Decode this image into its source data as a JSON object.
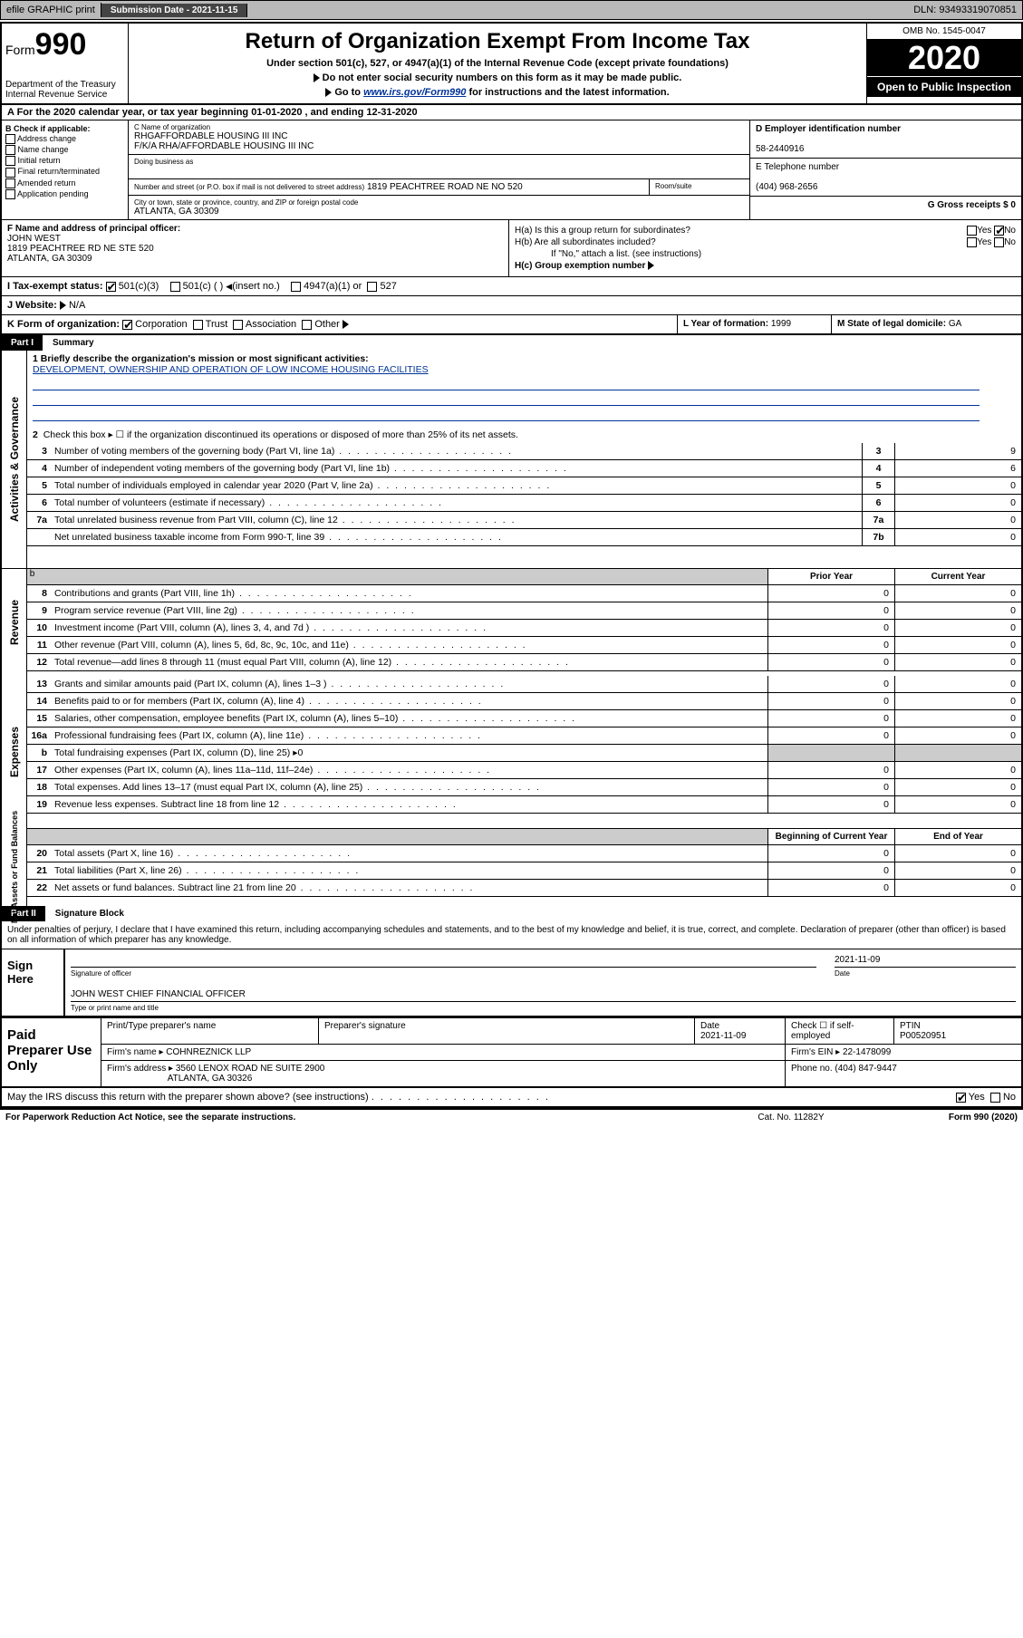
{
  "topbar": {
    "efile": "efile GRAPHIC print",
    "submission_label": "Submission Date - 2021-11-15",
    "dln": "DLN: 93493319070851"
  },
  "header": {
    "form_label": "Form",
    "form_number": "990",
    "dept": "Department of the Treasury",
    "irs": "Internal Revenue Service",
    "title": "Return of Organization Exempt From Income Tax",
    "sub": "Under section 501(c), 527, or 4947(a)(1) of the Internal Revenue Code (except private foundations)",
    "ssn": "Do not enter social security numbers on this form as it may be made public.",
    "goto_pre": "Go to ",
    "goto_link": "www.irs.gov/Form990",
    "goto_post": " for instructions and the latest information.",
    "omb": "OMB No. 1545-0047",
    "year": "2020",
    "open": "Open to Public Inspection"
  },
  "rowA": "A For the 2020 calendar year, or tax year beginning 01-01-2020    , and ending 12-31-2020",
  "sectionB": {
    "label": "B Check if applicable:",
    "opts": [
      "Address change",
      "Name change",
      "Initial return",
      "Final return/terminated",
      "Amended return",
      "Application pending"
    ]
  },
  "sectionC": {
    "name_lbl": "C Name of organization",
    "name1": "RHGAFFORDABLE HOUSING III INC",
    "name2": "F/K/A RHA/AFFORDABLE HOUSING III INC",
    "dba_lbl": "Doing business as",
    "street_lbl": "Number and street (or P.O. box if mail is not delivered to street address)",
    "street": "1819 PEACHTREE ROAD NE NO 520",
    "suite_lbl": "Room/suite",
    "city_lbl": "City or town, state or province, country, and ZIP or foreign postal code",
    "city": "ATLANTA, GA  30309"
  },
  "sectionD": {
    "lbl": "D Employer identification number",
    "val": "58-2440916"
  },
  "sectionE": {
    "lbl": "E Telephone number",
    "val": "(404) 968-2656"
  },
  "sectionG": {
    "lbl": "G Gross receipts $ 0"
  },
  "sectionF": {
    "lbl": "F  Name and address of principal officer:",
    "name": "JOHN WEST",
    "addr1": "1819 PEACHTREE RD NE STE 520",
    "addr2": "ATLANTA, GA  30309"
  },
  "sectionH": {
    "a": "H(a)  Is this a group return for subordinates?",
    "b": "H(b)  Are all subordinates included?",
    "bnote": "If \"No,\" attach a list. (see instructions)",
    "c": "H(c)  Group exemption number",
    "yes": "Yes",
    "no": "No"
  },
  "rowI": {
    "lbl": "I    Tax-exempt status:",
    "o1": "501(c)(3)",
    "o2": "501(c) (   )",
    "o2b": "(insert no.)",
    "o3": "4947(a)(1) or",
    "o4": "527"
  },
  "rowJ": {
    "lbl": "J   Website:",
    "val": "N/A"
  },
  "rowK": {
    "lbl": "K Form of organization:",
    "opts": [
      "Corporation",
      "Trust",
      "Association",
      "Other"
    ]
  },
  "rowL": {
    "lbl": "L Year of formation:",
    "val": "1999"
  },
  "rowM": {
    "lbl": "M State of legal domicile:",
    "val": "GA"
  },
  "part1": {
    "lbl": "Part I",
    "title": "Summary"
  },
  "mission": {
    "q": "1  Briefly describe the organization's mission or most significant activities:",
    "txt": "DEVELOPMENT, OWNERSHIP AND OPERATION OF LOW INCOME HOUSING FACILITIES"
  },
  "line2txt": "Check this box ▸ ☐  if the organization discontinued its operations or disposed of more than 25% of its net assets.",
  "gov_lines": [
    {
      "n": "3",
      "t": "Number of voting members of the governing body (Part VI, line 1a)",
      "rn": "3",
      "v": "9"
    },
    {
      "n": "4",
      "t": "Number of independent voting members of the governing body (Part VI, line 1b)",
      "rn": "4",
      "v": "6"
    },
    {
      "n": "5",
      "t": "Total number of individuals employed in calendar year 2020 (Part V, line 2a)",
      "rn": "5",
      "v": "0"
    },
    {
      "n": "6",
      "t": "Total number of volunteers (estimate if necessary)",
      "rn": "6",
      "v": "0"
    },
    {
      "n": "7a",
      "t": "Total unrelated business revenue from Part VIII, column (C), line 12",
      "rn": "7a",
      "v": "0"
    },
    {
      "n": "",
      "t": "Net unrelated business taxable income from Form 990-T, line 39",
      "rn": "7b",
      "v": "0"
    }
  ],
  "cols": {
    "prior": "Prior Year",
    "current": "Current Year",
    "beg": "Beginning of Current Year",
    "end": "End of Year"
  },
  "revenue": [
    {
      "n": "8",
      "t": "Contributions and grants (Part VIII, line 1h)",
      "p": "0",
      "c": "0"
    },
    {
      "n": "9",
      "t": "Program service revenue (Part VIII, line 2g)",
      "p": "0",
      "c": "0"
    },
    {
      "n": "10",
      "t": "Investment income (Part VIII, column (A), lines 3, 4, and 7d )",
      "p": "0",
      "c": "0"
    },
    {
      "n": "11",
      "t": "Other revenue (Part VIII, column (A), lines 5, 6d, 8c, 9c, 10c, and 11e)",
      "p": "0",
      "c": "0"
    },
    {
      "n": "12",
      "t": "Total revenue—add lines 8 through 11 (must equal Part VIII, column (A), line 12)",
      "p": "0",
      "c": "0"
    }
  ],
  "expenses": [
    {
      "n": "13",
      "t": "Grants and similar amounts paid (Part IX, column (A), lines 1–3 )",
      "p": "0",
      "c": "0"
    },
    {
      "n": "14",
      "t": "Benefits paid to or for members (Part IX, column (A), line 4)",
      "p": "0",
      "c": "0"
    },
    {
      "n": "15",
      "t": "Salaries, other compensation, employee benefits (Part IX, column (A), lines 5–10)",
      "p": "0",
      "c": "0"
    },
    {
      "n": "16a",
      "t": "Professional fundraising fees (Part IX, column (A), line 11e)",
      "p": "0",
      "c": "0"
    },
    {
      "n": "b",
      "t": "Total fundraising expenses (Part IX, column (D), line 25) ▸0",
      "p": "",
      "c": "",
      "grey": true
    },
    {
      "n": "17",
      "t": "Other expenses (Part IX, column (A), lines 11a–11d, 11f–24e)",
      "p": "0",
      "c": "0"
    },
    {
      "n": "18",
      "t": "Total expenses. Add lines 13–17 (must equal Part IX, column (A), line 25)",
      "p": "0",
      "c": "0"
    },
    {
      "n": "19",
      "t": "Revenue less expenses. Subtract line 18 from line 12",
      "p": "0",
      "c": "0"
    }
  ],
  "netassets": [
    {
      "n": "20",
      "t": "Total assets (Part X, line 16)",
      "p": "0",
      "c": "0"
    },
    {
      "n": "21",
      "t": "Total liabilities (Part X, line 26)",
      "p": "0",
      "c": "0"
    },
    {
      "n": "22",
      "t": "Net assets or fund balances. Subtract line 21 from line 20",
      "p": "0",
      "c": "0"
    }
  ],
  "sidebars": {
    "gov": "Activities & Governance",
    "rev": "Revenue",
    "exp": "Expenses",
    "na": "Net Assets or Fund Balances"
  },
  "part2": {
    "lbl": "Part II",
    "title": "Signature Block"
  },
  "sigtext": "Under penalties of perjury, I declare that I have examined this return, including accompanying schedules and statements, and to the best of my knowledge and belief, it is true, correct, and complete. Declaration of preparer (other than officer) is based on all information of which preparer has any knowledge.",
  "sign": {
    "here": "Sign Here",
    "sigoff": "Signature of officer",
    "date": "2021-11-09",
    "datelbl": "Date",
    "name": "JOHN WEST CHIEF FINANCIAL OFFICER",
    "typelbl": "Type or print name and title"
  },
  "prep": {
    "lbl": "Paid Preparer Use Only",
    "h1": "Print/Type preparer's name",
    "h2": "Preparer's signature",
    "h3": "Date",
    "h3v": "2021-11-09",
    "h4": "Check ☐ if self-employed",
    "h5": "PTIN",
    "h5v": "P00520951",
    "firm_lbl": "Firm's name   ▸",
    "firm": "COHNREZNICK LLP",
    "ein_lbl": "Firm's EIN ▸",
    "ein": "22-1478099",
    "addr_lbl": "Firm's address ▸",
    "addr1": "3560 LENOX ROAD NE SUITE 2900",
    "addr2": "ATLANTA, GA  30326",
    "phone_lbl": "Phone no.",
    "phone": "(404) 847-9447"
  },
  "discuss": "May the IRS discuss this return with the preparer shown above? (see instructions)",
  "footer": {
    "l": "For Paperwork Reduction Act Notice, see the separate instructions.",
    "m": "Cat. No. 11282Y",
    "r": "Form 990 (2020)"
  }
}
